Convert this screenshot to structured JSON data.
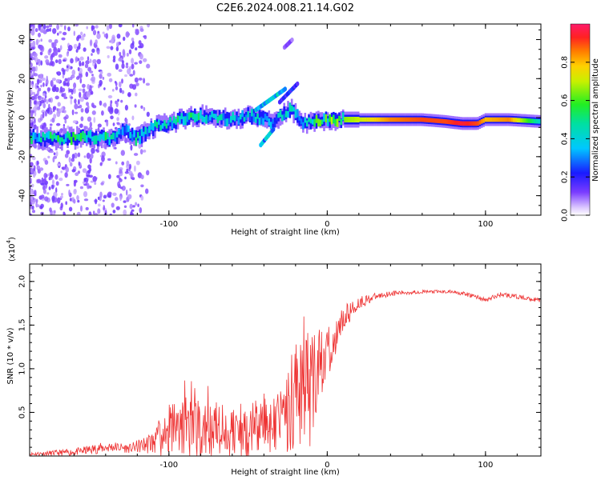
{
  "title": "C2E6.2024.008.21.14.G02",
  "colors": {
    "snr_line": "#ee3333",
    "axis": "#000000",
    "background": "#ffffff"
  },
  "chart_data": [
    {
      "type": "heatmap",
      "name": "spectrogram",
      "xlabel": "Height of straight line (km)",
      "ylabel": "Frequency (Hz)",
      "xlim": [
        -188,
        135
      ],
      "ylim": [
        -50,
        48
      ],
      "xticks": [
        -100,
        0,
        100
      ],
      "xtick_labels": [
        "-100",
        "0",
        "100"
      ],
      "yticks": [
        -40,
        -20,
        0,
        20,
        40
      ],
      "ytick_labels": [
        "-40",
        "-20",
        "0",
        "20",
        "40"
      ],
      "ridge": {
        "x": [
          -188,
          -170,
          -150,
          -135,
          -128,
          -120,
          -110,
          -100,
          -90,
          -80,
          -70,
          -60,
          -50,
          -42,
          -35,
          -28,
          -22,
          -18,
          -15,
          -10,
          0,
          20,
          40,
          60,
          75,
          85,
          95,
          100,
          115,
          135
        ],
        "freq": [
          -10,
          -11,
          -10,
          -11,
          -6,
          -11,
          -5,
          -3,
          0,
          1,
          0,
          -1,
          1,
          0,
          -3,
          2,
          4,
          0,
          -3,
          -2,
          -1,
          -1,
          -1,
          -1,
          -2,
          -3,
          -3,
          -1,
          -1,
          -2
        ],
        "amplitude": [
          0.45,
          0.5,
          0.5,
          0.45,
          0.35,
          0.45,
          0.45,
          0.45,
          0.5,
          0.45,
          0.45,
          0.4,
          0.4,
          0.4,
          0.35,
          0.4,
          0.45,
          0.45,
          0.5,
          0.5,
          0.6,
          0.7,
          0.85,
          0.9,
          0.9,
          0.95,
          0.9,
          0.8,
          0.85,
          0.4
        ]
      },
      "colorbar": {
        "label": "Normalized spectral amplitude",
        "range": [
          0,
          1
        ],
        "ticks": [
          0.0,
          0.2,
          0.4,
          0.6,
          0.8
        ],
        "tick_labels": [
          "0.0",
          "0.2",
          "0.4",
          "0.6",
          "0.8"
        ]
      }
    },
    {
      "type": "line",
      "name": "snr",
      "xlabel": "Height of straight line (km)",
      "ylabel": "SNR (10 * v/v)",
      "multiplier": "(x10",
      "multiplier_exp": "4",
      "multiplier_close": ")",
      "xlim": [
        -188,
        135
      ],
      "ylim": [
        0,
        2.2
      ],
      "xticks": [
        -100,
        0,
        100
      ],
      "xtick_labels": [
        "-100",
        "0",
        "100"
      ],
      "yticks": [
        0.5,
        1.0,
        1.5,
        2.0
      ],
      "ytick_labels": [
        "0.5",
        "1.0",
        "1.5",
        "2.0"
      ],
      "x": [
        -188,
        -160,
        -145,
        -135,
        -125,
        -115,
        -105,
        -100,
        -90,
        -80,
        -70,
        -60,
        -50,
        -40,
        -30,
        -25,
        -20,
        -15,
        -10,
        -5,
        0,
        5,
        10,
        20,
        30,
        40,
        60,
        80,
        95,
        100,
        110,
        135
      ],
      "base": [
        0.02,
        0.04,
        0.08,
        0.1,
        0.08,
        0.12,
        0.18,
        0.25,
        0.3,
        0.25,
        0.25,
        0.25,
        0.25,
        0.28,
        0.35,
        0.5,
        0.7,
        0.8,
        0.6,
        0.9,
        1.15,
        1.35,
        1.55,
        1.75,
        1.82,
        1.86,
        1.88,
        1.88,
        1.82,
        1.78,
        1.85,
        1.78
      ],
      "noise_amp": [
        0.02,
        0.04,
        0.06,
        0.06,
        0.05,
        0.1,
        0.2,
        0.3,
        0.35,
        0.35,
        0.35,
        0.3,
        0.35,
        0.35,
        0.45,
        0.55,
        0.7,
        0.8,
        0.7,
        0.5,
        0.3,
        0.25,
        0.15,
        0.08,
        0.04,
        0.03,
        0.02,
        0.02,
        0.03,
        0.03,
        0.03,
        0.02
      ]
    }
  ]
}
